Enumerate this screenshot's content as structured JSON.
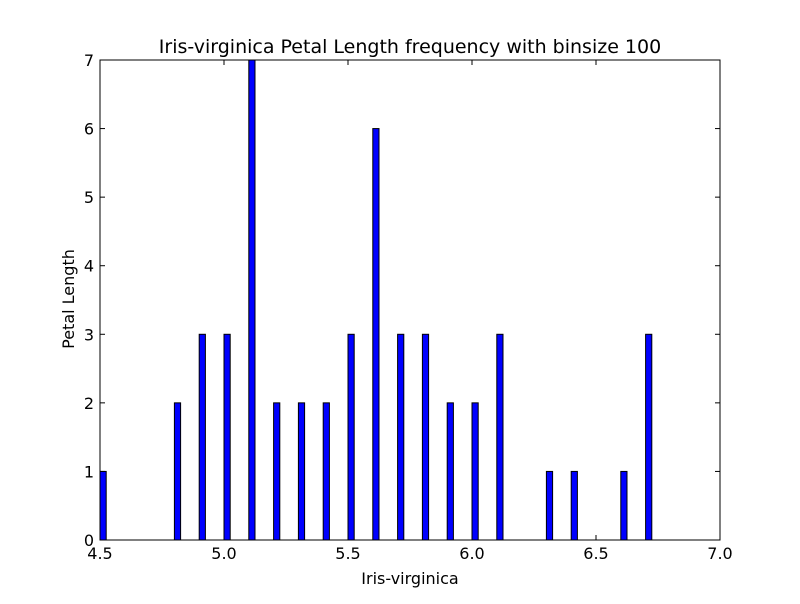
{
  "chart_data": {
    "type": "bar",
    "title": "Iris-virginica Petal Length frequency with binsize 100",
    "xlabel": "Iris-virginica",
    "ylabel": "Petal Length",
    "xlim": [
      4.5,
      7.0
    ],
    "ylim": [
      0,
      7
    ],
    "xticks": [
      "4.5",
      "5.0",
      "5.5",
      "6.0",
      "6.5",
      "7.0"
    ],
    "yticks": [
      "0",
      "1",
      "2",
      "3",
      "4",
      "5",
      "6",
      "7"
    ],
    "bin_width": 0.025,
    "grid": false,
    "bar_color": "#0000ff",
    "edge_color": "#000000",
    "bins": [
      {
        "x": 4.5,
        "count": 1
      },
      {
        "x": 4.8,
        "count": 2
      },
      {
        "x": 4.9,
        "count": 3
      },
      {
        "x": 5.0,
        "count": 3
      },
      {
        "x": 5.1,
        "count": 7
      },
      {
        "x": 5.2,
        "count": 2
      },
      {
        "x": 5.3,
        "count": 2
      },
      {
        "x": 5.4,
        "count": 2
      },
      {
        "x": 5.5,
        "count": 3
      },
      {
        "x": 5.6,
        "count": 6
      },
      {
        "x": 5.7,
        "count": 3
      },
      {
        "x": 5.8,
        "count": 3
      },
      {
        "x": 5.9,
        "count": 2
      },
      {
        "x": 6.0,
        "count": 2
      },
      {
        "x": 6.1,
        "count": 3
      },
      {
        "x": 6.3,
        "count": 1
      },
      {
        "x": 6.4,
        "count": 1
      },
      {
        "x": 6.6,
        "count": 1
      },
      {
        "x": 6.7,
        "count": 3
      }
    ]
  }
}
